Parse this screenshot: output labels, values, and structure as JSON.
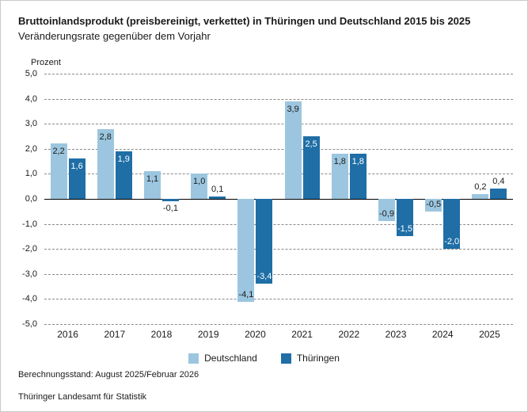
{
  "header": {
    "title": "Bruttoinlandsprodukt (preisbereinigt, verkettet) in Thüringen und Deutschland 2015 bis 2025",
    "subtitle": "Veränderungsrate gegenüber dem Vorjahr"
  },
  "chart_data": {
    "type": "bar",
    "title": "Bruttoinlandsprodukt (preisbereinigt, verkettet) in Thüringen und Deutschland 2015 bis 2025",
    "subtitle": "Veränderungsrate gegenüber dem Vorjahr",
    "ylabel": "Prozent",
    "xlabel": "",
    "ylim": [
      -5,
      5
    ],
    "ytick_step": 1,
    "grid": "horizontal-dashed",
    "zero_line": "solid",
    "legend_position": "bottom",
    "decimal_separator": ",",
    "categories": [
      "2016",
      "2017",
      "2018",
      "2019",
      "2020",
      "2021",
      "2022",
      "2023",
      "2024",
      "2025"
    ],
    "series": [
      {
        "id": "deutschland",
        "name": "Deutschland",
        "color": "#9cc6df",
        "label_color_inside": "#1a1a1a",
        "values": [
          2.2,
          2.8,
          1.1,
          1.0,
          -4.1,
          3.9,
          1.8,
          -0.9,
          -0.5,
          0.2
        ]
      },
      {
        "id": "thueringen",
        "name": "Thüringen",
        "color": "#1f6ea6",
        "label_color_inside": "#ffffff",
        "values": [
          1.6,
          1.9,
          -0.1,
          0.1,
          -3.4,
          2.5,
          1.8,
          -1.5,
          -2.0,
          0.4
        ]
      }
    ]
  },
  "footer": {
    "line1": "Berechnungsstand: August 2025/Februar 2026",
    "line2": "Thüringer Landesamt für Statistik"
  }
}
